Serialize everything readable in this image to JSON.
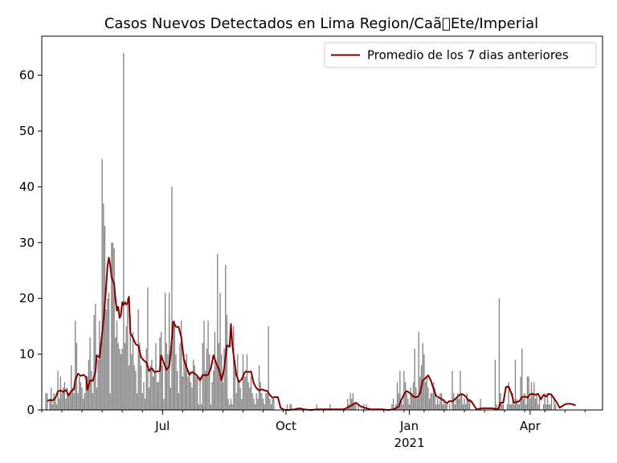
{
  "chart_data": {
    "type": "bar",
    "title": "Casos Nuevos Detectados en Lima Region/Caã\u0000Ete/Imperial",
    "xlabel": "",
    "ylabel": "",
    "ylim": [
      0,
      67
    ],
    "y_ticks": [
      0,
      10,
      20,
      30,
      40,
      50,
      60
    ],
    "x_ticks": [
      {
        "label": "Jul",
        "day": 90
      },
      {
        "label": "Oct",
        "day": 182
      },
      {
        "label": "Jan",
        "sublabel": "2021",
        "day": 274
      },
      {
        "label": "Apr",
        "day": 364
      }
    ],
    "x_range_days": [
      0,
      418
    ],
    "legend": {
      "placement": "top-right",
      "entries": [
        "Promedio de los 7 dias anteriores"
      ]
    },
    "colors": {
      "bars": "#808080",
      "average_line": "#800000"
    },
    "series": [
      {
        "kind": "bar",
        "values": [
          0,
          0,
          3,
          3,
          0,
          2,
          4,
          1,
          3,
          2,
          1,
          7,
          2,
          6,
          3,
          4,
          5,
          2,
          4,
          3,
          3,
          8,
          4,
          3,
          16,
          12,
          3,
          6,
          5,
          4,
          2,
          3,
          5,
          6,
          9,
          13,
          7,
          3,
          17,
          19,
          4,
          9,
          16,
          12,
          45,
          37,
          33,
          18,
          20,
          21,
          3,
          30,
          30,
          29,
          13,
          16,
          12,
          11,
          10,
          11,
          64,
          12,
          15,
          20,
          8,
          17,
          10,
          14,
          8,
          7,
          3,
          18,
          12,
          8,
          3,
          5,
          2,
          11,
          22,
          4,
          8,
          9,
          6,
          7,
          12,
          5,
          5,
          13,
          14,
          8,
          2,
          21,
          12,
          10,
          21,
          4,
          40,
          16,
          16,
          10,
          7,
          3,
          12,
          16,
          6,
          10,
          9,
          10,
          6,
          7,
          5,
          4,
          9,
          8,
          6,
          6,
          1,
          6,
          1,
          12,
          16,
          7,
          11,
          16,
          10,
          1,
          5,
          7,
          14,
          8,
          28,
          12,
          21,
          10,
          5,
          11,
          26,
          17,
          2,
          1,
          2,
          1,
          15,
          9,
          3,
          10,
          5,
          4,
          2,
          10,
          6,
          6,
          10,
          5,
          4,
          6,
          3,
          2,
          1,
          3,
          2,
          8,
          5,
          3,
          2,
          1,
          3,
          3,
          15,
          2,
          1,
          2,
          2,
          0,
          0,
          0,
          0,
          0,
          0,
          0,
          0,
          0,
          1,
          0,
          1,
          1,
          0,
          0,
          0,
          0,
          0,
          0,
          0,
          0,
          0,
          0,
          0,
          0,
          0,
          0,
          0,
          0,
          0,
          0,
          1,
          0,
          0,
          0,
          0,
          0,
          0,
          0,
          0,
          0,
          1,
          0,
          0,
          0,
          0,
          0,
          0,
          0,
          0,
          0,
          0,
          0,
          0,
          2,
          1,
          3,
          2,
          3,
          1,
          1,
          0,
          1,
          0,
          0,
          0,
          1,
          0,
          1,
          0,
          0,
          0,
          0,
          0,
          0,
          0,
          0,
          0,
          0,
          0,
          0,
          0,
          0,
          0,
          0,
          0,
          0,
          1,
          2,
          0,
          1,
          5,
          3,
          7,
          2,
          1,
          7,
          5,
          3,
          2,
          1,
          4,
          3,
          5,
          11,
          4,
          2,
          14,
          6,
          8,
          12,
          10,
          5,
          6,
          4,
          2,
          3,
          3,
          5,
          4,
          1,
          2,
          1,
          3,
          3,
          1,
          2,
          1,
          1,
          0,
          1,
          0,
          7,
          3,
          1,
          2,
          3,
          2,
          7,
          3,
          1,
          2,
          1,
          3,
          2,
          2,
          0,
          0,
          0,
          0,
          0,
          0,
          0,
          2,
          0,
          0,
          0,
          0,
          0,
          0,
          0,
          0,
          0,
          0,
          9,
          1,
          0,
          20,
          3,
          1,
          1,
          0,
          0,
          1,
          5,
          1,
          1,
          3,
          1,
          9,
          2,
          1,
          1,
          6,
          11,
          2,
          3,
          1,
          6,
          6,
          2,
          5,
          3,
          5,
          2,
          3,
          1,
          2,
          0,
          0,
          1,
          3,
          1,
          3,
          1,
          1,
          3,
          0,
          2,
          1
        ]
      },
      {
        "kind": "line",
        "name": "Promedio de los 7 dias anteriores",
        "points": [
          [
            4,
            1.6
          ],
          [
            6,
            1.8
          ],
          [
            8,
            1.7
          ],
          [
            10,
            2.1
          ],
          [
            12,
            3.3
          ],
          [
            14,
            3.5
          ],
          [
            16,
            3.2
          ],
          [
            18,
            3.6
          ],
          [
            20,
            2.6
          ],
          [
            22,
            3.4
          ],
          [
            24,
            3.7
          ],
          [
            25,
            5.5
          ],
          [
            27,
            6.5
          ],
          [
            29,
            6.1
          ],
          [
            31,
            6.3
          ],
          [
            33,
            5.9
          ],
          [
            34,
            3.6
          ],
          [
            36,
            5.3
          ],
          [
            38,
            5.2
          ],
          [
            40,
            6.8
          ],
          [
            41,
            9.8
          ],
          [
            43,
            9.4
          ],
          [
            44,
            11.5
          ],
          [
            46,
            16.0
          ],
          [
            48,
            22.0
          ],
          [
            49,
            25.8
          ],
          [
            50,
            27.3
          ],
          [
            51,
            26.0
          ],
          [
            52,
            23.8
          ],
          [
            54,
            22.5
          ],
          [
            55,
            19.8
          ],
          [
            56,
            17.8
          ],
          [
            57,
            18.5
          ],
          [
            58,
            16.5
          ],
          [
            59,
            17.0
          ],
          [
            60,
            19.3
          ],
          [
            61,
            18.8
          ],
          [
            62,
            19.3
          ],
          [
            63,
            18.9
          ],
          [
            64,
            19.2
          ],
          [
            65,
            20.3
          ],
          [
            66,
            13.8
          ],
          [
            68,
            12.9
          ],
          [
            70,
            11.8
          ],
          [
            72,
            11.5
          ],
          [
            74,
            9.5
          ],
          [
            76,
            8.9
          ],
          [
            78,
            8.5
          ],
          [
            80,
            7.0
          ],
          [
            82,
            7.5
          ],
          [
            84,
            6.8
          ],
          [
            86,
            6.9
          ],
          [
            88,
            7.0
          ],
          [
            89,
            9.8
          ],
          [
            91,
            8.4
          ],
          [
            93,
            7.2
          ],
          [
            95,
            7.8
          ],
          [
            96,
            10.0
          ],
          [
            98,
            15.8
          ],
          [
            100,
            14.9
          ],
          [
            102,
            14.9
          ],
          [
            104,
            13.0
          ],
          [
            106,
            8.9
          ],
          [
            108,
            7.6
          ],
          [
            110,
            6.3
          ],
          [
            112,
            6.8
          ],
          [
            114,
            6.5
          ],
          [
            116,
            6.1
          ],
          [
            118,
            5.3
          ],
          [
            120,
            6.3
          ],
          [
            122,
            6.2
          ],
          [
            124,
            6.3
          ],
          [
            126,
            7.4
          ],
          [
            128,
            9.8
          ],
          [
            130,
            8.4
          ],
          [
            132,
            7.3
          ],
          [
            134,
            5.3
          ],
          [
            136,
            7.5
          ],
          [
            138,
            11.6
          ],
          [
            140,
            11.3
          ],
          [
            141,
            15.4
          ],
          [
            142,
            11.8
          ],
          [
            143,
            9.8
          ],
          [
            145,
            6.3
          ],
          [
            147,
            5.0
          ],
          [
            149,
            5.5
          ],
          [
            151,
            6.6
          ],
          [
            152,
            6.9
          ],
          [
            154,
            6.8
          ],
          [
            156,
            6.9
          ],
          [
            158,
            4.8
          ],
          [
            160,
            3.9
          ],
          [
            162,
            3.5
          ],
          [
            164,
            3.7
          ],
          [
            166,
            3.5
          ],
          [
            168,
            3.4
          ],
          [
            170,
            2.7
          ],
          [
            172,
            2.2
          ],
          [
            174,
            2.3
          ],
          [
            176,
            2.3
          ],
          [
            178,
            0.4
          ],
          [
            180,
            0.1
          ],
          [
            182,
            0.0
          ],
          [
            184,
            0.0
          ],
          [
            188,
            0.1
          ],
          [
            192,
            0.3
          ],
          [
            196,
            0.1
          ],
          [
            200,
            0.0
          ],
          [
            206,
            0.1
          ],
          [
            212,
            0.1
          ],
          [
            218,
            0.1
          ],
          [
            224,
            0.1
          ],
          [
            226,
            0.2
          ],
          [
            230,
            0.7
          ],
          [
            234,
            1.3
          ],
          [
            238,
            0.6
          ],
          [
            242,
            0.3
          ],
          [
            246,
            0.1
          ],
          [
            250,
            0.1
          ],
          [
            254,
            0.1
          ],
          [
            258,
            0.0
          ],
          [
            262,
            0.1
          ],
          [
            266,
            0.6
          ],
          [
            268,
            1.8
          ],
          [
            270,
            2.8
          ],
          [
            272,
            3.4
          ],
          [
            274,
            3.1
          ],
          [
            276,
            2.6
          ],
          [
            278,
            2.3
          ],
          [
            280,
            2.3
          ],
          [
            282,
            3.0
          ],
          [
            284,
            5.3
          ],
          [
            286,
            5.7
          ],
          [
            288,
            6.2
          ],
          [
            290,
            5.3
          ],
          [
            292,
            3.8
          ],
          [
            294,
            2.5
          ],
          [
            296,
            2.2
          ],
          [
            298,
            2.0
          ],
          [
            300,
            1.6
          ],
          [
            302,
            1.2
          ],
          [
            304,
            1.6
          ],
          [
            306,
            1.5
          ],
          [
            308,
            1.9
          ],
          [
            310,
            2.4
          ],
          [
            312,
            2.8
          ],
          [
            314,
            2.8
          ],
          [
            316,
            2.4
          ],
          [
            318,
            1.7
          ],
          [
            320,
            1.6
          ],
          [
            322,
            0.9
          ],
          [
            324,
            0.1
          ],
          [
            328,
            0.3
          ],
          [
            332,
            0.3
          ],
          [
            336,
            0.3
          ],
          [
            340,
            0.1
          ],
          [
            342,
            1.3
          ],
          [
            344,
            1.3
          ],
          [
            346,
            4.1
          ],
          [
            348,
            4.2
          ],
          [
            350,
            3.0
          ],
          [
            352,
            1.3
          ],
          [
            354,
            1.4
          ],
          [
            356,
            1.6
          ],
          [
            358,
            2.3
          ],
          [
            360,
            2.4
          ],
          [
            362,
            2.2
          ],
          [
            364,
            2.8
          ],
          [
            366,
            2.9
          ],
          [
            368,
            2.7
          ],
          [
            370,
            2.9
          ],
          [
            372,
            1.9
          ],
          [
            374,
            2.7
          ],
          [
            376,
            2.4
          ],
          [
            378,
            2.9
          ],
          [
            380,
            2.7
          ],
          [
            382,
            2.0
          ],
          [
            384,
            1.3
          ],
          [
            386,
            0.4
          ],
          [
            388,
            0.7
          ],
          [
            390,
            1.0
          ],
          [
            392,
            1.1
          ],
          [
            394,
            1.1
          ],
          [
            396,
            1.0
          ],
          [
            398,
            0.8
          ]
        ]
      }
    ]
  }
}
